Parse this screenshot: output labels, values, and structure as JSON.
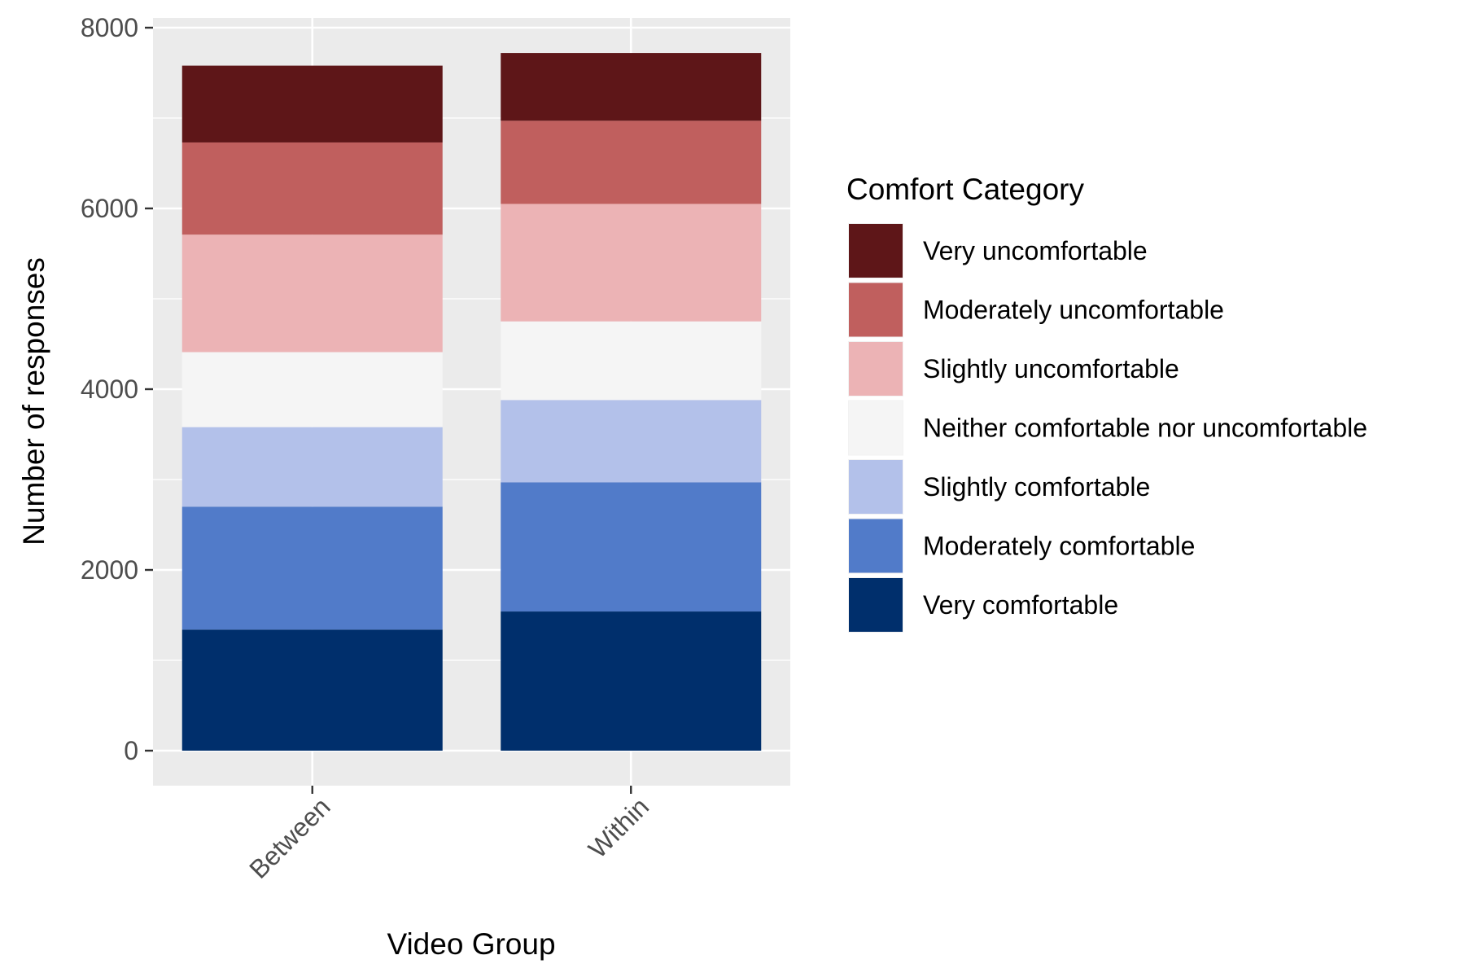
{
  "chart_data": {
    "type": "bar",
    "stacked": true,
    "title": "",
    "xlabel": "Video Group",
    "ylabel": "Number of responses",
    "categories": [
      "Between",
      "Within"
    ],
    "ylim": [
      0,
      8000
    ],
    "yticks": [
      0,
      2000,
      4000,
      6000,
      8000
    ],
    "grid": true,
    "legend": {
      "title": "Comfort Category",
      "placement": "right"
    },
    "series": [
      {
        "name": "Very comfortable",
        "color": "#002f6c",
        "values": [
          1340,
          1540
        ]
      },
      {
        "name": "Moderately comfortable",
        "color": "#517bc9",
        "values": [
          1360,
          1430
        ]
      },
      {
        "name": "Slightly comfortable",
        "color": "#b3c1ea",
        "values": [
          880,
          910
        ]
      },
      {
        "name": "Neither comfortable nor uncomfortable",
        "color": "#f5f5f5",
        "values": [
          830,
          870
        ]
      },
      {
        "name": "Slightly uncomfortable",
        "color": "#ecb3b5",
        "values": [
          1300,
          1300
        ]
      },
      {
        "name": "Moderately uncomfortable",
        "color": "#c05f5e",
        "values": [
          1020,
          920
        ]
      },
      {
        "name": "Very uncomfortable",
        "color": "#5e1618",
        "values": [
          850,
          750
        ]
      }
    ],
    "panel_background": "#ebebeb",
    "gridline_color": "#ffffff"
  }
}
